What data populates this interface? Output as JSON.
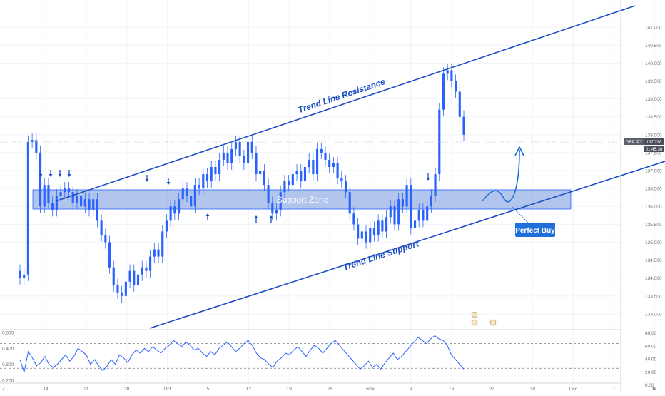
{
  "symbol": "GBPJPY",
  "chart_data": {
    "type": "candlestick",
    "price_axis": {
      "ticks": [
        "141.000",
        "140.500",
        "140.000",
        "139.500",
        "139.000",
        "138.500",
        "138.000",
        "137.500",
        "137.000",
        "136.500",
        "136.000",
        "135.500",
        "135.000",
        "134.500",
        "134.000",
        "133.500",
        "133.000"
      ],
      "range": [
        132.8,
        141.6
      ]
    },
    "current_price": {
      "symbol": "GBPJPY",
      "value": "137.796",
      "countdown": "01:45:36"
    },
    "time_axis": {
      "ticks": [
        "14",
        "21",
        "28",
        "Oct",
        "5",
        "12",
        "19",
        "26",
        "Nov",
        "9",
        "16",
        "23",
        "30",
        "Dec",
        "7",
        "14"
      ]
    },
    "price_candles": [
      134.0,
      134.1,
      137.8,
      137.85,
      137.5,
      136.0,
      136.6,
      136.1,
      135.9,
      136.3,
      136.4,
      136.5,
      136.4,
      136.1,
      136.3,
      136.0,
      136.2,
      135.9,
      136.2,
      135.6,
      135.2,
      135.0,
      134.3,
      133.8,
      133.6,
      133.5,
      133.9,
      134.2,
      133.8,
      134.1,
      134.3,
      134.2,
      134.6,
      134.8,
      134.6,
      135.3,
      135.6,
      136.0,
      135.8,
      136.2,
      136.5,
      136.3,
      136.0,
      136.6,
      136.5,
      136.9,
      136.7,
      137.1,
      136.9,
      137.3,
      137.5,
      137.2,
      137.6,
      137.8,
      137.4,
      137.2,
      137.8,
      137.5,
      136.9,
      137.0,
      136.6,
      136.1,
      135.8,
      135.9,
      136.4,
      136.7,
      136.6,
      136.9,
      137.0,
      136.7,
      137.1,
      137.3,
      136.9,
      137.6,
      137.5,
      137.3,
      137.1,
      137.2,
      136.8,
      136.7,
      136.4,
      135.8,
      135.5,
      135.1,
      135.3,
      135.0,
      135.4,
      135.2,
      135.6,
      135.3,
      135.7,
      136.0,
      135.5,
      136.2,
      136.0,
      136.6,
      135.4,
      135.6,
      135.9,
      135.6,
      136.0,
      136.3,
      136.9,
      138.7,
      139.7,
      139.8,
      139.5,
      139.2,
      138.5,
      138.0
    ],
    "rsi_panel": {
      "scale": [
        0.2,
        0.5
      ],
      "ticks_left": [
        "0.500",
        "0.400",
        "0.300",
        "0.200"
      ],
      "ticks_right": [
        "80.00",
        "60.00",
        "40.00",
        "20.00",
        "0.00"
      ],
      "overbought": 0.43,
      "oversold": 0.275,
      "values": [
        0.33,
        0.25,
        0.38,
        0.34,
        0.29,
        0.31,
        0.35,
        0.3,
        0.28,
        0.3,
        0.33,
        0.36,
        0.32,
        0.35,
        0.4,
        0.38,
        0.36,
        0.3,
        0.33,
        0.29,
        0.26,
        0.29,
        0.33,
        0.3,
        0.36,
        0.34,
        0.31,
        0.36,
        0.39,
        0.37,
        0.4,
        0.38,
        0.41,
        0.39,
        0.37,
        0.4,
        0.42,
        0.45,
        0.43,
        0.41,
        0.44,
        0.42,
        0.39,
        0.4,
        0.37,
        0.35,
        0.38,
        0.36,
        0.4,
        0.42,
        0.44,
        0.41,
        0.38,
        0.4,
        0.43,
        0.45,
        0.42,
        0.37,
        0.34,
        0.33,
        0.3,
        0.28,
        0.32,
        0.34,
        0.37,
        0.36,
        0.39,
        0.41,
        0.38,
        0.35,
        0.39,
        0.42,
        0.4,
        0.37,
        0.4,
        0.43,
        0.45,
        0.42,
        0.39,
        0.36,
        0.33,
        0.3,
        0.27,
        0.29,
        0.32,
        0.28,
        0.3,
        0.27,
        0.31,
        0.34,
        0.37,
        0.33,
        0.35,
        0.38,
        0.41,
        0.44,
        0.47,
        0.45,
        0.43,
        0.46,
        0.48,
        0.46,
        0.45,
        0.42,
        0.36,
        0.33,
        0.3,
        0.27
      ],
      "line_color": "#2962ff"
    },
    "annotations": {
      "resistance_label": "Trend Line Resistance",
      "support_label": "Trend Line Support",
      "zone_label": "Support Zone",
      "callout_label": "Perfect Buy"
    },
    "colors": {
      "candle": "#2962ff",
      "trendline": "#1c4fc4",
      "zone_fill": "#7f9fe0",
      "callout": "#1e6fd9"
    }
  }
}
